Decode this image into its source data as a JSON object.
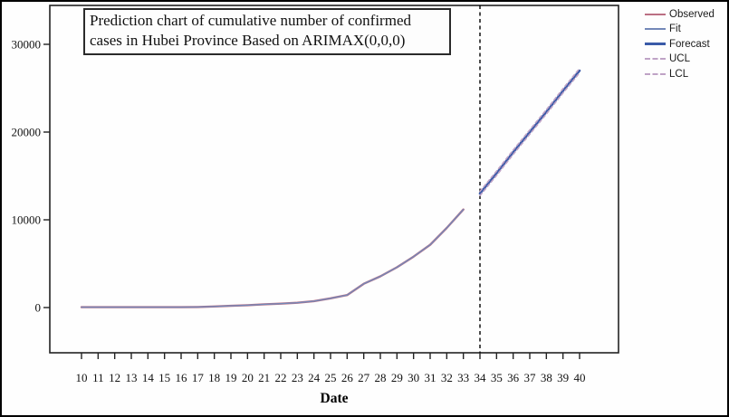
{
  "window": {
    "title": "Prediction chart - ARIMAX"
  },
  "title_box": {
    "lines": [
      "Prediction chart of cumulative number of confirmed",
      "cases in Hubei Province Based on ARIMAX(0,0,0)"
    ]
  },
  "legend": {
    "position": "top-right",
    "items": [
      {
        "label": "Observed",
        "style": "solid",
        "weight": "thin",
        "color": "#bb6f83"
      },
      {
        "label": "Fit",
        "style": "solid",
        "weight": "thin",
        "color": "#7388b8"
      },
      {
        "label": "Forecast",
        "style": "solid",
        "weight": "thick",
        "color": "#3a5aa8"
      },
      {
        "label": "UCL",
        "style": "dashed",
        "weight": "thin",
        "color": "#bfa3c6"
      },
      {
        "label": "LCL",
        "style": "dashed",
        "weight": "thin",
        "color": "#bfa3c6"
      }
    ]
  },
  "colors": {
    "observed": "#bb6f83",
    "fit": "#7388b8",
    "forecast": "#3a5aa8",
    "confidence_interval": "#bfa3c6",
    "axis": "#222222",
    "separator": "#000000",
    "background": "#fefefe"
  },
  "chart_data": {
    "type": "line",
    "title": "Prediction chart of cumulative number of confirmed cases in Hubei Province Based on ARIMAX(0,0,0)",
    "xlabel": "Date",
    "ylabel": "",
    "xlim": [
      9.2,
      42.3
    ],
    "ylim": [
      -5200,
      34500
    ],
    "x_ticks": [
      10,
      11,
      12,
      13,
      14,
      15,
      16,
      17,
      18,
      19,
      20,
      21,
      22,
      23,
      24,
      25,
      26,
      27,
      28,
      29,
      30,
      31,
      32,
      33,
      34,
      35,
      36,
      37,
      38,
      39,
      40
    ],
    "y_ticks": [
      0,
      10000,
      20000,
      30000
    ],
    "grid": false,
    "legend_position": "top-right",
    "forecast_separator_x": 34,
    "series": [
      {
        "name": "Observed",
        "style": "solid",
        "color": "#bb6f83",
        "width": 2.4,
        "x": [
          10,
          11,
          12,
          13,
          14,
          15,
          16,
          17,
          18,
          19,
          20,
          21,
          22,
          23,
          24,
          25,
          26,
          27,
          28,
          29,
          30,
          31,
          32,
          33
        ],
        "values": [
          41,
          41,
          41,
          41,
          41,
          41,
          45,
          62,
          121,
          198,
          270,
          375,
          444,
          549,
          729,
          1052,
          1423,
          2714,
          3554,
          4586,
          5806,
          7153,
          9074,
          11177
        ]
      },
      {
        "name": "Fit",
        "style": "solid",
        "color": "#7388b8",
        "width": 1.4,
        "x": [
          10,
          11,
          12,
          13,
          14,
          15,
          16,
          17,
          18,
          19,
          20,
          21,
          22,
          23,
          24,
          25,
          26,
          27,
          28,
          29,
          30,
          31,
          32,
          33
        ],
        "values": [
          41,
          41,
          41,
          41,
          41,
          41,
          45,
          62,
          121,
          198,
          270,
          375,
          444,
          549,
          729,
          1052,
          1423,
          2714,
          3554,
          4586,
          5806,
          7153,
          9074,
          11177
        ]
      },
      {
        "name": "Forecast",
        "style": "solid",
        "color": "#3a5aa8",
        "width": 2.6,
        "x": [
          34,
          35,
          36,
          37,
          38,
          39,
          40
        ],
        "values": [
          13000,
          15300,
          17700,
          20000,
          22300,
          24700,
          27000
        ]
      },
      {
        "name": "UCL",
        "style": "dashed",
        "color": "#bfa3c6",
        "width": 1.6,
        "x": [
          34,
          35,
          36,
          37,
          38,
          39,
          40
        ],
        "values": [
          13250,
          15550,
          17950,
          20250,
          22550,
          24950,
          27250
        ]
      },
      {
        "name": "LCL",
        "style": "dashed",
        "color": "#bfa3c6",
        "width": 1.6,
        "x": [
          34,
          35,
          36,
          37,
          38,
          39,
          40
        ],
        "values": [
          12750,
          15050,
          17450,
          19750,
          22050,
          24450,
          26750
        ]
      }
    ]
  }
}
